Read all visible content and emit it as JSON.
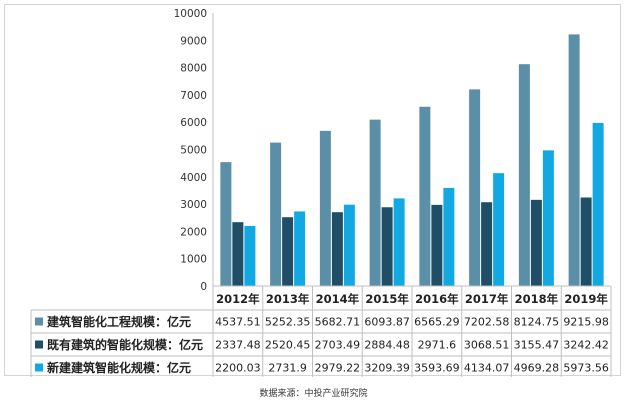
{
  "chart_data": {
    "type": "bar",
    "categories": [
      "2012年",
      "2013年",
      "2014年",
      "2015年",
      "2016年",
      "2017年",
      "2018年",
      "2019年"
    ],
    "series": [
      {
        "name": "建筑智能化工程规模：亿元",
        "color": "#5b8fa8",
        "values": [
          4537.51,
          5252.35,
          5682.71,
          6093.87,
          6565.29,
          7202.58,
          8124.75,
          9215.98
        ],
        "labels": [
          "4537.51",
          "5252.35",
          "5682.71",
          "6093.87",
          "6565.29",
          "7202.58",
          "8124.75",
          "9215.98"
        ]
      },
      {
        "name": "既有建筑的智能化规模：亿元",
        "color": "#1f4e66",
        "values": [
          2337.48,
          2520.45,
          2703.49,
          2884.48,
          2971.6,
          3068.51,
          3155.47,
          3242.42
        ],
        "labels": [
          "2337.48",
          "2520.45",
          "2703.49",
          "2884.48",
          "2971.6",
          "3068.51",
          "3155.47",
          "3242.42"
        ]
      },
      {
        "name": "新建建筑智能化规模：亿元",
        "color": "#12a9e3",
        "values": [
          2200.03,
          2731.9,
          2979.22,
          3209.39,
          3593.69,
          4134.07,
          4969.28,
          5973.56
        ],
        "labels": [
          "2200.03",
          "2731.9",
          "2979.22",
          "3209.39",
          "3593.69",
          "4134.07",
          "4969.28",
          "5973.56"
        ]
      }
    ],
    "ylim": [
      0,
      10000
    ],
    "yticks": [
      "0",
      "1000",
      "2000",
      "3000",
      "4000",
      "5000",
      "6000",
      "7000",
      "8000",
      "9000",
      "10000"
    ],
    "grid": false,
    "legend": "data table rows"
  },
  "source_note": "数据来源：中投产业研究院"
}
